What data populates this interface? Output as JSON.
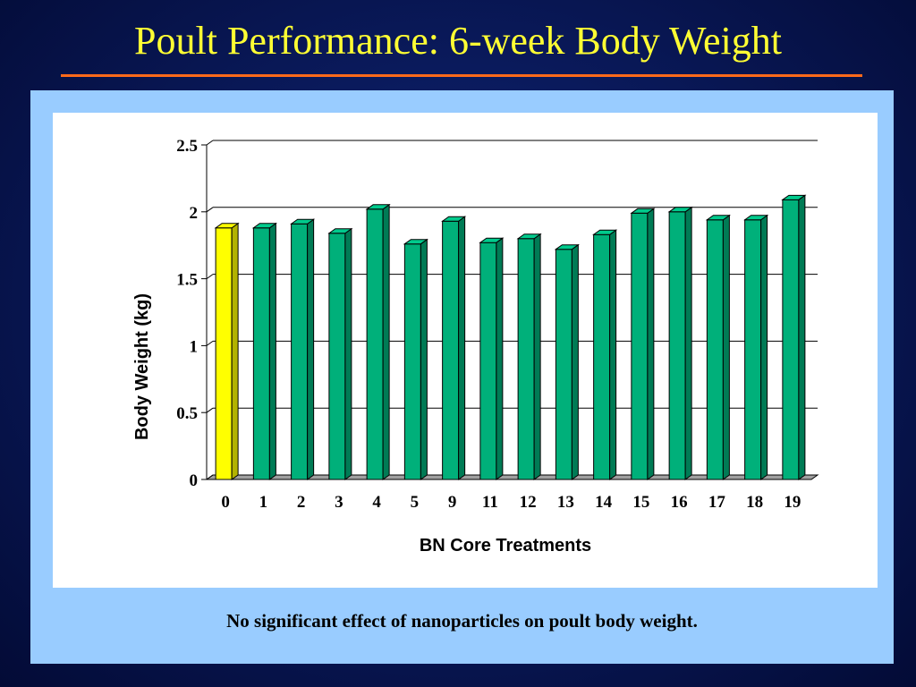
{
  "slide": {
    "title": "Poult Performance: 6-week Body Weight",
    "caption": "No significant effect of nanoparticles on poult body weight."
  },
  "colors": {
    "highlight_bar": "#ffff00",
    "bar": "#00b07a",
    "title": "#ffff33",
    "rule": "#ff6a1a"
  },
  "chart_data": {
    "type": "bar",
    "title": "",
    "xlabel": "BN Core Treatments",
    "ylabel": "Body Weight (kg)",
    "ylim": [
      0,
      2.5
    ],
    "yticks": [
      0,
      0.5,
      1,
      1.5,
      2,
      2.5
    ],
    "ytick_labels": [
      "0",
      "0.5",
      "1",
      "1.5",
      "2",
      "2.5"
    ],
    "grid": true,
    "categories": [
      "0",
      "1",
      "2",
      "3",
      "4",
      "5",
      "9",
      "11",
      "12",
      "13",
      "14",
      "15",
      "16",
      "17",
      "18",
      "19"
    ],
    "values": [
      1.88,
      1.88,
      1.91,
      1.84,
      2.02,
      1.76,
      1.93,
      1.77,
      1.8,
      1.72,
      1.83,
      1.99,
      2.0,
      1.94,
      1.94,
      2.09
    ],
    "highlight_index": 0
  }
}
